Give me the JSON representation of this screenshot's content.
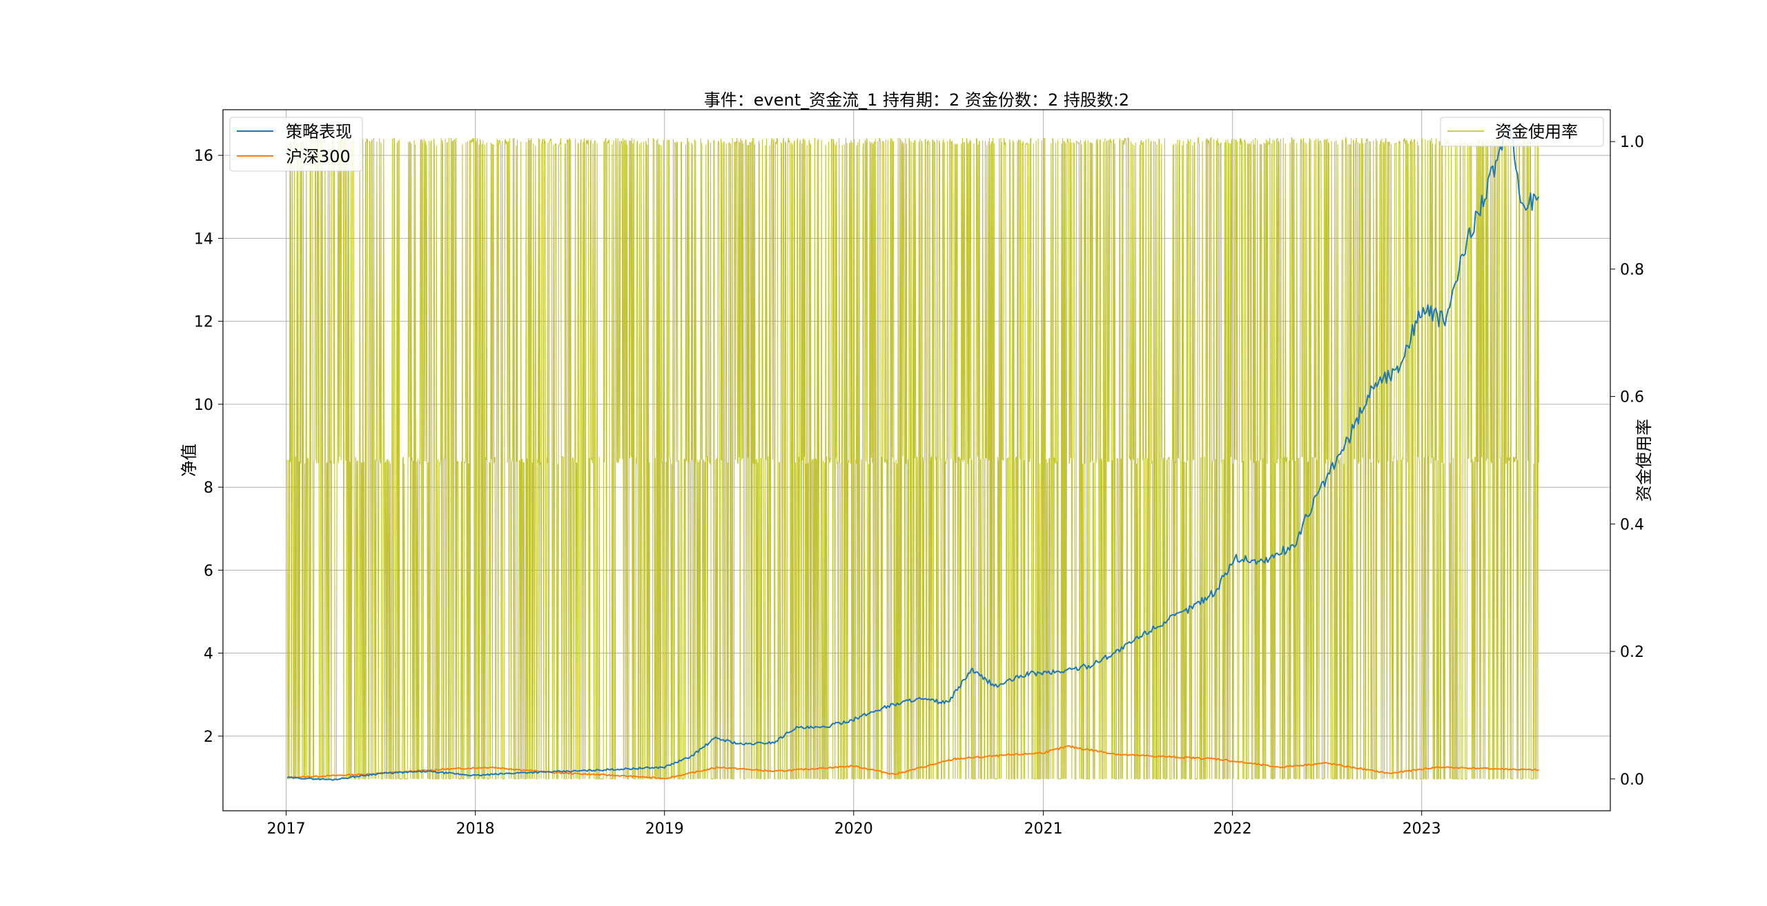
{
  "chart_data": {
    "type": "line",
    "title": "事件：event_资金流_1 持有期：2 资金份数：2 持股数:2",
    "ylabel": "净值",
    "y2label": "资金使用率",
    "x_ticks": [
      "2017",
      "2018",
      "2019",
      "2020",
      "2021",
      "2022",
      "2023"
    ],
    "xlim": [
      "2016-09-01",
      "2023-12-31"
    ],
    "ylim": [
      0.2,
      17.1
    ],
    "y_ticks": [
      2,
      4,
      6,
      8,
      10,
      12,
      14,
      16
    ],
    "y2lim": [
      -0.05,
      1.05
    ],
    "y2_ticks": [
      "0.0",
      "0.2",
      "0.4",
      "0.6",
      "0.8",
      "1.0"
    ],
    "grid": true,
    "legend_left_placement": "upper left",
    "legend_right_placement": "upper right",
    "colors": {
      "strategy": "#1f77b4",
      "hs300": "#ff7f0e",
      "usage": "#bcbd22"
    },
    "series": [
      {
        "name": "策略表现",
        "axis": "left",
        "x": [
          "2017-01-03",
          "2017-04-01",
          "2017-07-01",
          "2017-10-01",
          "2018-01-01",
          "2018-04-01",
          "2018-07-01",
          "2018-10-01",
          "2019-01-01",
          "2019-02-20",
          "2019-04-10",
          "2019-06-01",
          "2019-08-01",
          "2019-09-10",
          "2019-11-01",
          "2020-01-01",
          "2020-03-01",
          "2020-05-01",
          "2020-07-01",
          "2020-08-15",
          "2020-10-01",
          "2020-12-01",
          "2021-02-01",
          "2021-04-01",
          "2021-06-01",
          "2021-08-01",
          "2021-10-01",
          "2021-12-01",
          "2022-01-05",
          "2022-03-01",
          "2022-05-01",
          "2022-06-01",
          "2022-07-01",
          "2022-08-15",
          "2022-10-01",
          "2022-11-15",
          "2023-01-01",
          "2023-02-15",
          "2023-04-01",
          "2023-05-15",
          "2023-06-20",
          "2023-07-15",
          "2023-08-15"
        ],
        "values": [
          1.0,
          0.95,
          1.1,
          1.15,
          1.05,
          1.12,
          1.15,
          1.2,
          1.25,
          1.5,
          1.95,
          1.8,
          1.85,
          2.2,
          2.2,
          2.4,
          2.7,
          2.9,
          2.8,
          3.6,
          3.2,
          3.5,
          3.55,
          3.7,
          4.1,
          4.6,
          5.0,
          5.5,
          6.3,
          6.2,
          6.6,
          7.5,
          8.2,
          9.2,
          10.5,
          10.8,
          12.3,
          12.0,
          14.0,
          15.5,
          16.6,
          14.8,
          15.0
        ]
      },
      {
        "name": "沪深300",
        "axis": "left",
        "x": [
          "2017-01-03",
          "2017-06-01",
          "2017-11-01",
          "2018-02-01",
          "2018-06-01",
          "2018-10-01",
          "2019-01-03",
          "2019-04-15",
          "2019-08-01",
          "2020-01-01",
          "2020-03-20",
          "2020-07-15",
          "2021-01-01",
          "2021-02-18",
          "2021-06-01",
          "2021-12-01",
          "2022-04-01",
          "2022-06-30",
          "2022-10-31",
          "2023-01-31",
          "2023-05-01",
          "2023-08-15"
        ],
        "values": [
          1.0,
          1.08,
          1.2,
          1.25,
          1.12,
          1.05,
          0.98,
          1.25,
          1.15,
          1.28,
          1.08,
          1.45,
          1.6,
          1.75,
          1.55,
          1.45,
          1.25,
          1.35,
          1.1,
          1.25,
          1.22,
          1.18
        ]
      },
      {
        "name": "资金使用率",
        "axis": "right",
        "x_start": "2017-01-03",
        "x_end": "2023-08-15",
        "levels": [
          0.0,
          0.5,
          1.0
        ],
        "note": "daily values switching between 0.0, 0.5 and 1.0"
      }
    ]
  }
}
